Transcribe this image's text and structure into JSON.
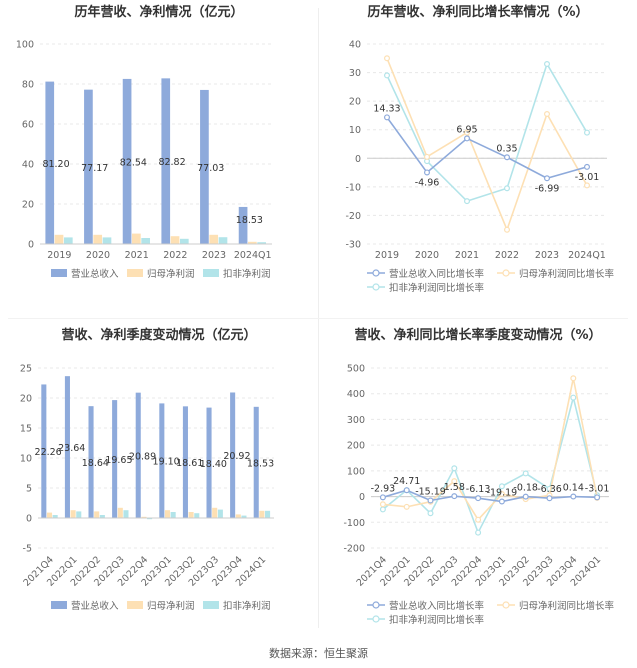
{
  "footer": {
    "label": "数据来源：",
    "source": "恒生聚源"
  },
  "chart_data": [
    {
      "type": "bar",
      "title": "历年营收、净利情况（亿元）",
      "categories": [
        "2019",
        "2020",
        "2021",
        "2022",
        "2023",
        "2024Q1"
      ],
      "ylim": [
        0,
        100
      ],
      "yticks": [
        0,
        20,
        40,
        60,
        80,
        100
      ],
      "grid": true,
      "legend_position": "bottom",
      "series": [
        {
          "name": "营业总收入",
          "color": "#8eaadb",
          "values": [
            81.2,
            77.17,
            82.54,
            82.82,
            77.03,
            18.53
          ],
          "labels": [
            "81.20",
            "77.17",
            "82.54",
            "82.82",
            "77.03",
            "18.53"
          ]
        },
        {
          "name": "归母净利润",
          "color": "#fde0b4",
          "values": [
            4.6,
            4.6,
            5.2,
            3.9,
            4.6,
            1.1
          ]
        },
        {
          "name": "扣非净利润",
          "color": "#b2e4e9",
          "values": [
            3.3,
            3.3,
            3.0,
            2.6,
            3.4,
            0.9
          ]
        }
      ]
    },
    {
      "type": "line",
      "title": "历年营收、净利同比增长率情况（%）",
      "categories": [
        "2019",
        "2020",
        "2021",
        "2022",
        "2023",
        "2024Q1"
      ],
      "ylim": [
        -30,
        40
      ],
      "yticks": [
        -30,
        -20,
        -10,
        0,
        10,
        20,
        30,
        40
      ],
      "grid": true,
      "legend_position": "bottom",
      "series": [
        {
          "name": "营业总收入同比增长率",
          "color": "#8eaadb",
          "values": [
            14.33,
            -4.96,
            6.95,
            0.35,
            -6.99,
            -3.01
          ],
          "labels": [
            "14.33",
            "-4.96",
            "6.95",
            "0.35",
            "-6.99",
            "-3.01"
          ]
        },
        {
          "name": "归母净利润同比增长率",
          "color": "#fde0b4",
          "values": [
            35.0,
            0.5,
            9.0,
            -25.0,
            15.5,
            -9.5
          ]
        },
        {
          "name": "扣非净利润同比增长率",
          "color": "#b2e4e9",
          "values": [
            29.0,
            -1.0,
            -15.0,
            -10.5,
            33.0,
            9.0
          ]
        }
      ]
    },
    {
      "type": "bar",
      "title": "营收、净利季度变动情况（亿元）",
      "categories": [
        "2021Q4",
        "2022Q1",
        "2022Q2",
        "2022Q3",
        "2022Q4",
        "2023Q1",
        "2023Q2",
        "2023Q3",
        "2023Q4",
        "2024Q1"
      ],
      "ylim": [
        -5,
        25
      ],
      "yticks": [
        -5,
        0,
        5,
        10,
        15,
        20,
        25
      ],
      "grid": true,
      "legend_position": "bottom",
      "series": [
        {
          "name": "营业总收入",
          "color": "#8eaadb",
          "values": [
            22.26,
            23.64,
            18.64,
            19.65,
            20.89,
            19.1,
            18.61,
            18.4,
            20.92,
            18.53
          ],
          "labels": [
            "22.26",
            "23.64",
            "18.64",
            "19.65",
            "20.89",
            "19.10",
            "18.61",
            "18.40",
            "20.92",
            "18.53"
          ]
        },
        {
          "name": "归母净利润",
          "color": "#fde0b4",
          "values": [
            0.9,
            1.3,
            1.1,
            1.7,
            0.2,
            1.3,
            1.0,
            1.7,
            0.6,
            1.2
          ]
        },
        {
          "name": "扣非净利润",
          "color": "#b2e4e9",
          "values": [
            0.5,
            1.1,
            0.5,
            1.3,
            -0.2,
            1.0,
            0.8,
            1.4,
            0.4,
            1.2
          ]
        }
      ]
    },
    {
      "type": "line",
      "title": "营收、净利同比增长率季度变动情况（%）",
      "categories": [
        "2021Q4",
        "2022Q1",
        "2022Q2",
        "2022Q3",
        "2022Q4",
        "2023Q1",
        "2023Q2",
        "2023Q3",
        "2023Q4",
        "2024Q1"
      ],
      "ylim": [
        -200,
        500
      ],
      "yticks": [
        -200,
        -100,
        0,
        100,
        200,
        300,
        400,
        500
      ],
      "grid": true,
      "legend_position": "bottom",
      "series": [
        {
          "name": "营业总收入同比增长率",
          "color": "#8eaadb",
          "values": [
            -2.93,
            24.71,
            -15.19,
            1.58,
            -6.13,
            -19.19,
            -0.18,
            -6.36,
            0.14,
            -3.01
          ],
          "labels": [
            "-2.93",
            "24.71",
            "-15.19",
            "1.58",
            "-6.13",
            "-19.19",
            "-0.18",
            "-6.36",
            "0.14",
            "-3.01"
          ]
        },
        {
          "name": "归母净利润同比增长率",
          "color": "#fde0b4",
          "values": [
            -30,
            -40,
            -20,
            60,
            -90,
            10,
            -10,
            5,
            460,
            -5
          ]
        },
        {
          "name": "扣非净利润同比增长率",
          "color": "#b2e4e9",
          "values": [
            -50,
            25,
            -65,
            110,
            -140,
            40,
            90,
            30,
            385,
            5
          ]
        }
      ]
    }
  ]
}
